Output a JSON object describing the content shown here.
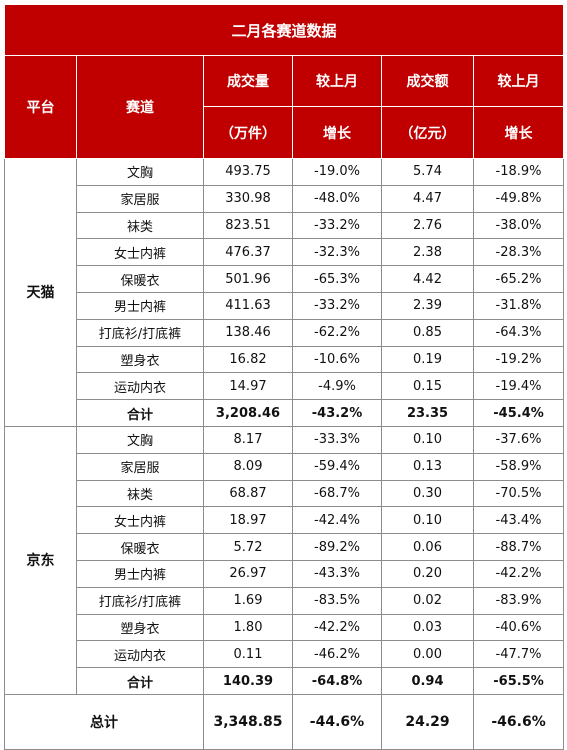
{
  "title": "二月各赛道数据",
  "headers": {
    "platform": "平台",
    "track": "赛道",
    "volume_top": "成交量",
    "volume_unit": "（万件）",
    "volume_change_top": "较上月",
    "volume_change_bottom": "增长",
    "amount_top": "成交额",
    "amount_unit": "（亿元）",
    "amount_change_top": "较上月",
    "amount_change_bottom": "增长"
  },
  "groups": [
    {
      "platform": "天猫",
      "rows": [
        {
          "track": "文胸",
          "volume": "493.75",
          "volume_change": "-19.0%",
          "amount": "5.74",
          "amount_change": "-18.9%"
        },
        {
          "track": "家居服",
          "volume": "330.98",
          "volume_change": "-48.0%",
          "amount": "4.47",
          "amount_change": "-49.8%"
        },
        {
          "track": "袜类",
          "volume": "823.51",
          "volume_change": "-33.2%",
          "amount": "2.76",
          "amount_change": "-38.0%"
        },
        {
          "track": "女士内裤",
          "volume": "476.37",
          "volume_change": "-32.3%",
          "amount": "2.38",
          "amount_change": "-28.3%"
        },
        {
          "track": "保暖衣",
          "volume": "501.96",
          "volume_change": "-65.3%",
          "amount": "4.42",
          "amount_change": "-65.2%"
        },
        {
          "track": "男士内裤",
          "volume": "411.63",
          "volume_change": "-33.2%",
          "amount": "2.39",
          "amount_change": "-31.8%"
        },
        {
          "track": "打底衫/打底裤",
          "volume": "138.46",
          "volume_change": "-62.2%",
          "amount": "0.85",
          "amount_change": "-64.3%"
        },
        {
          "track": "塑身衣",
          "volume": "16.82",
          "volume_change": "-10.6%",
          "amount": "0.19",
          "amount_change": "-19.2%"
        },
        {
          "track": "运动内衣",
          "volume": "14.97",
          "volume_change": "-4.9%",
          "amount": "0.15",
          "amount_change": "-19.4%"
        }
      ],
      "subtotal": {
        "track": "合计",
        "volume": "3,208.46",
        "volume_change": "-43.2%",
        "amount": "23.35",
        "amount_change": "-45.4%"
      }
    },
    {
      "platform": "京东",
      "rows": [
        {
          "track": "文胸",
          "volume": "8.17",
          "volume_change": "-33.3%",
          "amount": "0.10",
          "amount_change": "-37.6%"
        },
        {
          "track": "家居服",
          "volume": "8.09",
          "volume_change": "-59.4%",
          "amount": "0.13",
          "amount_change": "-58.9%"
        },
        {
          "track": "袜类",
          "volume": "68.87",
          "volume_change": "-68.7%",
          "amount": "0.30",
          "amount_change": "-70.5%"
        },
        {
          "track": "女士内裤",
          "volume": "18.97",
          "volume_change": "-42.4%",
          "amount": "0.10",
          "amount_change": "-43.4%"
        },
        {
          "track": "保暖衣",
          "volume": "5.72",
          "volume_change": "-89.2%",
          "amount": "0.06",
          "amount_change": "-88.7%"
        },
        {
          "track": "男士内裤",
          "volume": "26.97",
          "volume_change": "-43.3%",
          "amount": "0.20",
          "amount_change": "-42.2%"
        },
        {
          "track": "打底衫/打底裤",
          "volume": "1.69",
          "volume_change": "-83.5%",
          "amount": "0.02",
          "amount_change": "-83.9%"
        },
        {
          "track": "塑身衣",
          "volume": "1.80",
          "volume_change": "-42.2%",
          "amount": "0.03",
          "amount_change": "-40.6%"
        },
        {
          "track": "运动内衣",
          "volume": "0.11",
          "volume_change": "-46.2%",
          "amount": "0.00",
          "amount_change": "-47.7%"
        }
      ],
      "subtotal": {
        "track": "合计",
        "volume": "140.39",
        "volume_change": "-64.8%",
        "amount": "0.94",
        "amount_change": "-65.5%"
      }
    }
  ],
  "grand_total": {
    "label": "总计",
    "volume": "3,348.85",
    "volume_change": "-44.6%",
    "amount": "24.29",
    "amount_change": "-46.6%"
  },
  "colors": {
    "header_bg": "#c00000",
    "header_text": "#ffffff",
    "border": "#8c8c8c"
  }
}
